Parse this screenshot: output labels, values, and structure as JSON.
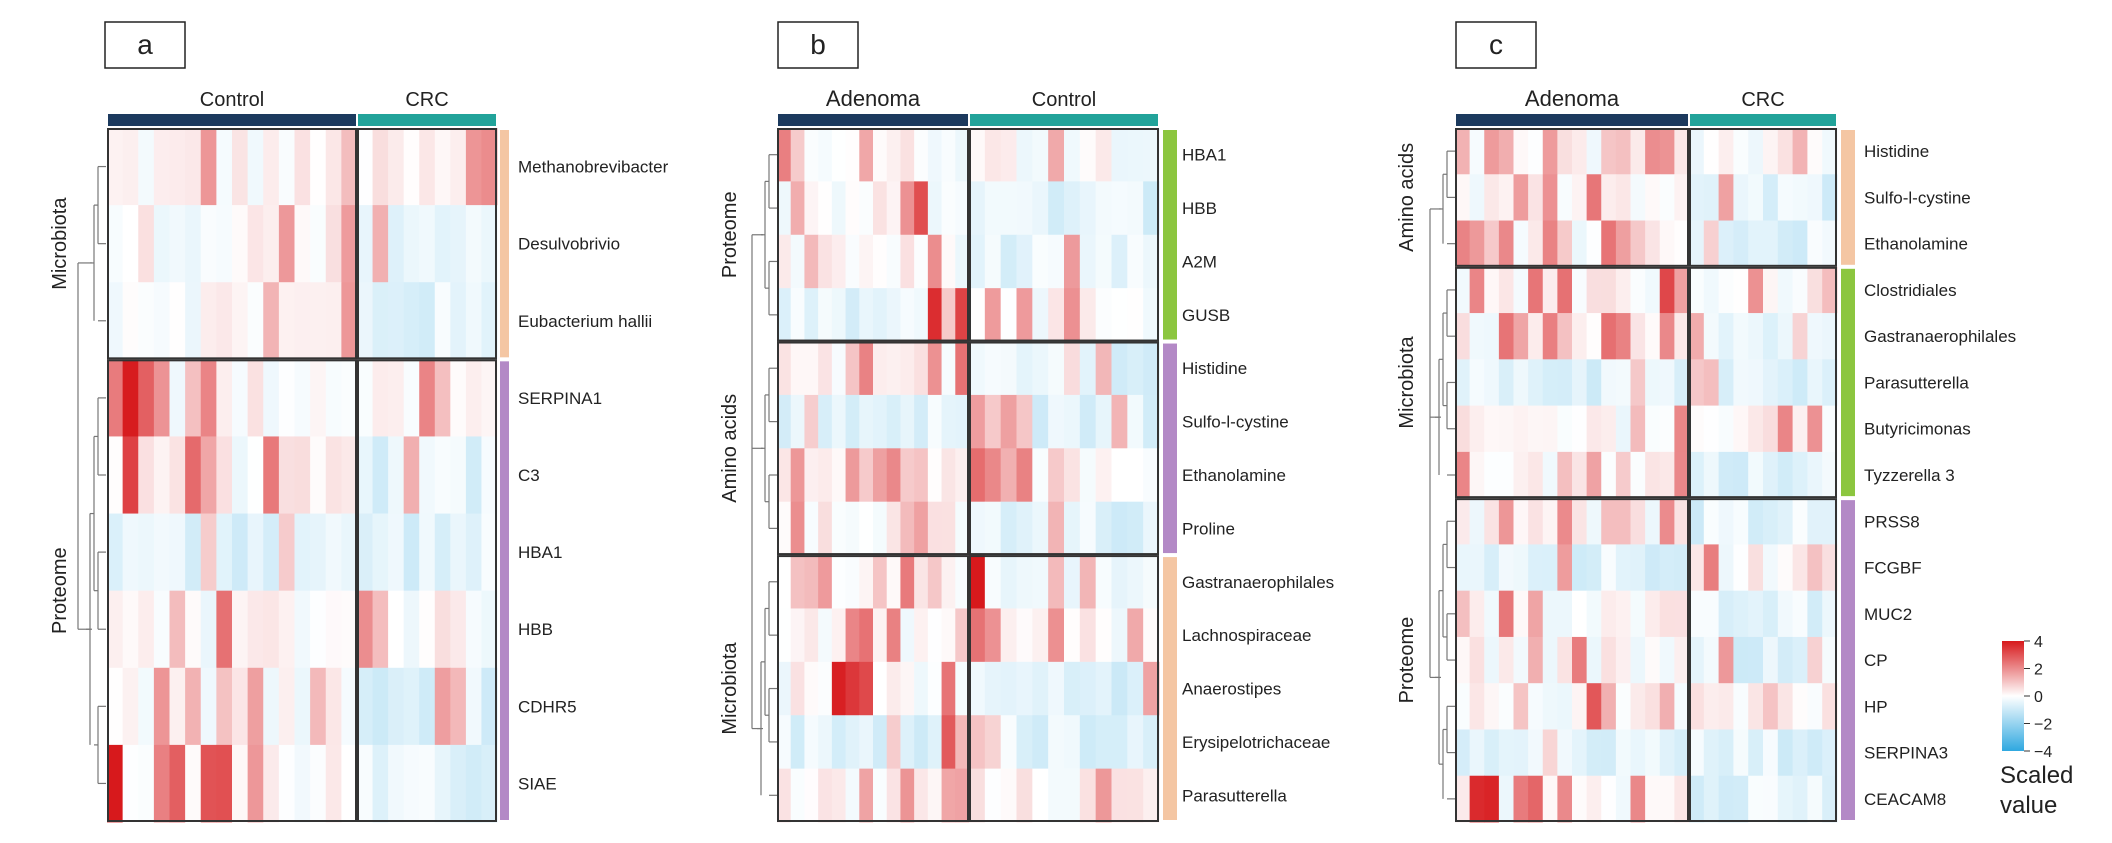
{
  "figure": {
    "legend": {
      "title": "Scaled value",
      "ticks": [
        "4",
        "2",
        "0",
        "−2",
        "−4"
      ],
      "colors": {
        "low": "#2fa8e0",
        "mid": "#ffffff",
        "high": "#d7191c"
      }
    },
    "colors": {
      "group_dark": "#1c3a5e",
      "group_teal": "#22a39a",
      "microbiota": "#f4c6a3",
      "proteome": "#b389c6",
      "amino": "#b389c6",
      "green": "#8cc63f"
    }
  },
  "chart_data": [
    {
      "type": "heatmap",
      "panel": "a",
      "columns": [
        {
          "name": "Control",
          "count": 16
        },
        {
          "name": "CRC",
          "count": 9
        }
      ],
      "row_groups": [
        {
          "name": "Microbiota",
          "color": "microbiota",
          "rows": [
            "Methanobrevibacter",
            "Desulvobrivio",
            "Eubacterium hallii"
          ]
        },
        {
          "name": "Proteome",
          "color": "proteome",
          "rows": [
            "SERPINA1",
            "C3",
            "HBA1",
            "HBB",
            "CDHR5",
            "SIAE"
          ]
        }
      ]
    },
    {
      "type": "heatmap",
      "panel": "b",
      "columns": [
        {
          "name": "Adenoma",
          "count": 14
        },
        {
          "name": "Control",
          "count": 12
        }
      ],
      "row_groups": [
        {
          "name": "Proteome",
          "color": "green",
          "rows": [
            "HBA1",
            "HBB",
            "A2M",
            "GUSB"
          ]
        },
        {
          "name": "Amino acids",
          "color": "amino",
          "rows": [
            "Histidine",
            "Sulfo-l-cystine",
            "Ethanolamine",
            "Proline"
          ]
        },
        {
          "name": "Microbiota",
          "color": "microbiota",
          "rows": [
            "Gastranaerophilales",
            "Lachnospiraceae",
            "Anaerostipes",
            "Erysipelotrichaceae",
            "Parasutterella"
          ]
        }
      ]
    },
    {
      "type": "heatmap",
      "panel": "c",
      "columns": [
        {
          "name": "Adenoma",
          "count": 16
        },
        {
          "name": "CRC",
          "count": 10
        }
      ],
      "row_groups": [
        {
          "name": "Amino acids",
          "color": "microbiota",
          "rows": [
            "Histidine",
            "Sulfo-l-cystine",
            "Ethanolamine"
          ]
        },
        {
          "name": "Microbiota",
          "color": "green",
          "rows": [
            "Clostridiales",
            "Gastranaerophilales",
            "Parasutterella",
            "Butyricimonas",
            "Tyzzerella 3"
          ]
        },
        {
          "name": "Proteome",
          "color": "proteome",
          "rows": [
            "PRSS8",
            "FCGBF",
            "MUC2",
            "CP",
            "HP",
            "SERPINA3",
            "CEACAM8"
          ]
        }
      ]
    }
  ]
}
